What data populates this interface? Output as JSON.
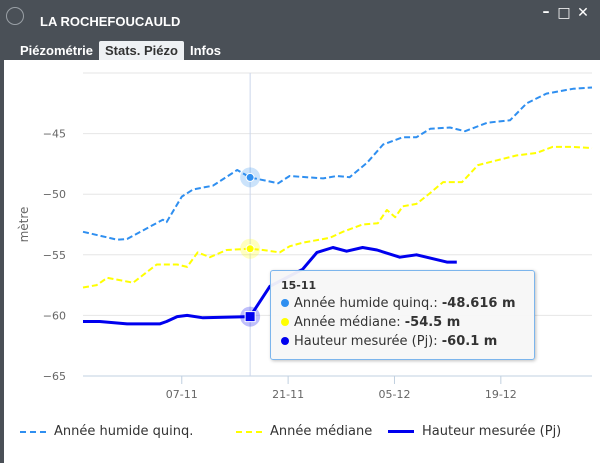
{
  "window": {
    "title": "LA ROCHEFOUCAULD",
    "controls": [
      "minimize",
      "maximize",
      "close"
    ]
  },
  "tabs": [
    {
      "label": "Piézométrie"
    },
    {
      "label": "Stats. Piézo",
      "active": true
    },
    {
      "label": "Infos"
    }
  ],
  "chart_data": {
    "type": "line",
    "title": "",
    "xlabel": "",
    "ylabel": "mètre",
    "x_unit": "days since 25-10",
    "xlim": [
      0,
      67
    ],
    "ylim": [
      -65,
      -40
    ],
    "yticks": [
      -45,
      -50,
      -55,
      -60,
      -65
    ],
    "xticks": [
      {
        "x": 13,
        "label": "07-11"
      },
      {
        "x": 27,
        "label": "21-11"
      },
      {
        "x": 41,
        "label": "05-12"
      },
      {
        "x": 55,
        "label": "19-12"
      }
    ],
    "grid": true,
    "legend_position": "bottom",
    "series": [
      {
        "name": "Année humide quinq.",
        "color": "#2f8ff0",
        "style": "dashed",
        "points": [
          [
            0,
            -53.1
          ],
          [
            4.5,
            -53.75
          ],
          [
            5.8,
            -53.7
          ],
          [
            10.5,
            -52.1
          ],
          [
            11,
            -52.3
          ],
          [
            13,
            -50.2
          ],
          [
            14.5,
            -49.6
          ],
          [
            17.1,
            -49.3
          ],
          [
            20.3,
            -48.0
          ],
          [
            22,
            -48.616
          ],
          [
            25.7,
            -49.1
          ],
          [
            27.2,
            -48.5
          ],
          [
            31.6,
            -48.7
          ],
          [
            33.4,
            -48.5
          ],
          [
            35.1,
            -48.6
          ],
          [
            37.4,
            -47.4
          ],
          [
            39.5,
            -45.9
          ],
          [
            42.1,
            -45.3
          ],
          [
            43.9,
            -45.3
          ],
          [
            45.7,
            -44.6
          ],
          [
            48.3,
            -44.5
          ],
          [
            50.3,
            -44.8
          ],
          [
            53.2,
            -44.1
          ],
          [
            56.2,
            -43.9
          ],
          [
            58.4,
            -42.5
          ],
          [
            61,
            -41.7
          ],
          [
            64.5,
            -41.3
          ],
          [
            67,
            -41.2
          ]
        ]
      },
      {
        "name": "Année médiane",
        "color": "#ffff00",
        "style": "dashed",
        "points": [
          [
            0,
            -57.7
          ],
          [
            1.8,
            -57.5
          ],
          [
            3.2,
            -56.9
          ],
          [
            6.6,
            -57.3
          ],
          [
            9.7,
            -55.8
          ],
          [
            12.4,
            -55.8
          ],
          [
            13.7,
            -56.0
          ],
          [
            15.1,
            -54.8
          ],
          [
            16.7,
            -55.2
          ],
          [
            18.9,
            -54.6
          ],
          [
            22,
            -54.5
          ],
          [
            23.7,
            -54.6
          ],
          [
            25.9,
            -54.8
          ],
          [
            27.2,
            -54.3
          ],
          [
            28.9,
            -54.0
          ],
          [
            32.5,
            -53.6
          ],
          [
            34.2,
            -53.1
          ],
          [
            36.8,
            -52.5
          ],
          [
            38.8,
            -52.4
          ],
          [
            40,
            -51.3
          ],
          [
            41.1,
            -51.9
          ],
          [
            42.1,
            -51.0
          ],
          [
            43.9,
            -50.8
          ],
          [
            45.7,
            -49.9
          ],
          [
            47.4,
            -49.0
          ],
          [
            49.9,
            -49.0
          ],
          [
            52,
            -47.6
          ],
          [
            54.5,
            -47.2
          ],
          [
            57.1,
            -46.8
          ],
          [
            59.7,
            -46.6
          ],
          [
            61.8,
            -46.1
          ],
          [
            64.5,
            -46.1
          ],
          [
            67,
            -46.2
          ]
        ]
      },
      {
        "name": "Hauteur mesurée (Pj)",
        "color": "#0000ee",
        "style": "solid",
        "points": [
          [
            0,
            -60.5
          ],
          [
            2.2,
            -60.5
          ],
          [
            5.8,
            -60.7
          ],
          [
            10.1,
            -60.7
          ],
          [
            11,
            -60.5
          ],
          [
            12.4,
            -60.1
          ],
          [
            13.7,
            -60.0
          ],
          [
            15.8,
            -60.2
          ],
          [
            22,
            -60.1
          ],
          [
            24.6,
            -57.6
          ],
          [
            28.9,
            -56.2
          ],
          [
            30.8,
            -54.8
          ],
          [
            32.9,
            -54.4
          ],
          [
            34.7,
            -54.7
          ],
          [
            36.8,
            -54.4
          ],
          [
            38.7,
            -54.6
          ],
          [
            41.7,
            -55.2
          ],
          [
            43.9,
            -55.0
          ],
          [
            47.9,
            -55.6
          ],
          [
            49.2,
            -55.6
          ]
        ]
      }
    ],
    "hover": {
      "x": 22,
      "date": "15-11"
    }
  },
  "tooltip": {
    "date": "15-11",
    "rows": [
      {
        "label": "Année humide quinq.: ",
        "value": "-48.616 m",
        "color": "#2f8ff0"
      },
      {
        "label": "Année médiane: ",
        "value": "-54.5 m",
        "color": "#ffff00"
      },
      {
        "label": "Hauteur mesurée (Pj): ",
        "value": "-60.1 m",
        "color": "#0000ee"
      }
    ]
  }
}
